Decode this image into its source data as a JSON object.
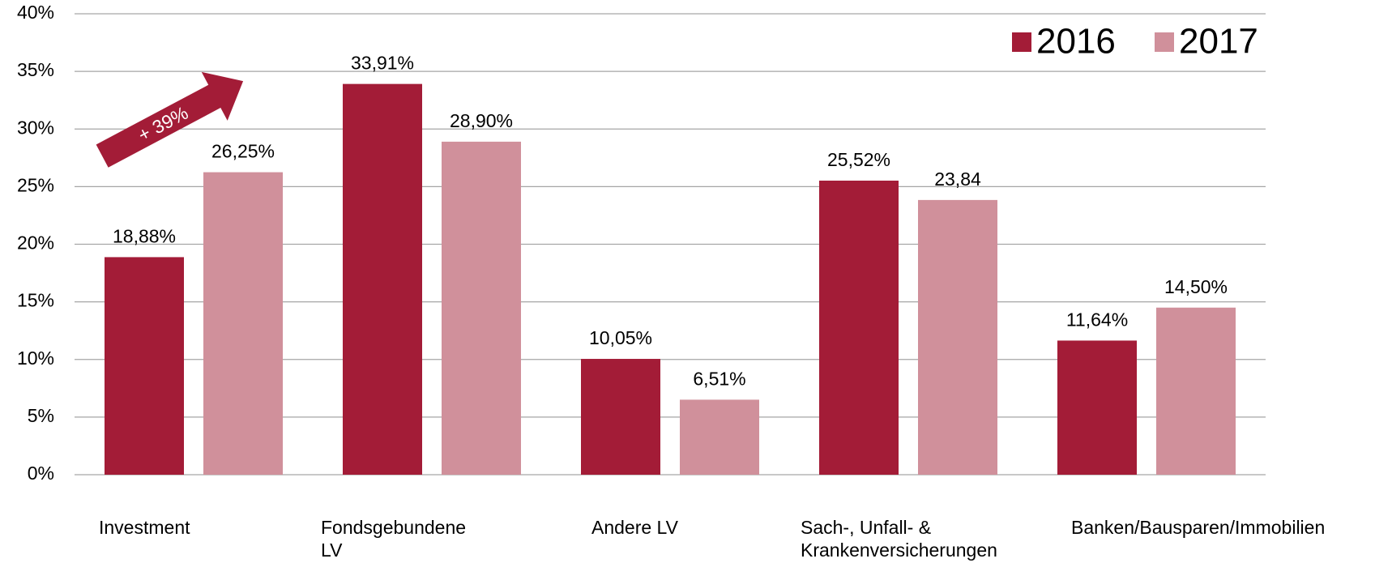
{
  "chart_data": {
    "type": "bar",
    "annotation": "+ 39%",
    "categories": [
      "Investment",
      "Fondsgebundene LV",
      "Andere LV",
      "Sach-, Unfall- & Krankenversicherungen",
      "Banken/Bausparen/Immobilien"
    ],
    "series": [
      {
        "name": "2016",
        "color": "#a31c37",
        "values": [
          18.88,
          33.91,
          10.05,
          25.52,
          11.64
        ],
        "value_labels": [
          "18,88%",
          "33,91%",
          "10,05%",
          "25,52%",
          "11,64%"
        ]
      },
      {
        "name": "2017",
        "color": "#d0909b",
        "values": [
          26.25,
          28.9,
          6.51,
          23.84,
          14.5
        ],
        "value_labels": [
          "26,25%",
          "28,90%",
          "6,51%",
          "23,84",
          "14,50%"
        ]
      }
    ],
    "ylim": [
      0,
      40
    ],
    "yticks": [
      {
        "value": 0,
        "label": "0%"
      },
      {
        "value": 5,
        "label": "5%"
      },
      {
        "value": 10,
        "label": "10%"
      },
      {
        "value": 15,
        "label": "15%"
      },
      {
        "value": 20,
        "label": "20%"
      },
      {
        "value": 25,
        "label": "25%"
      },
      {
        "value": 30,
        "label": "30%"
      },
      {
        "value": 35,
        "label": "35%"
      },
      {
        "value": 40,
        "label": "40%"
      }
    ],
    "grid": true,
    "legend": "top-right"
  }
}
